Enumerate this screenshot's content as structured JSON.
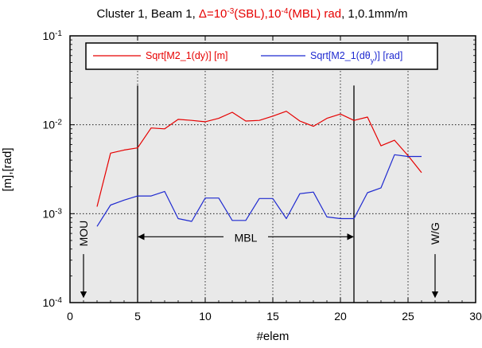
{
  "chart_data": {
    "type": "line",
    "title_parts": [
      {
        "text": "Cluster 1, Beam 1, ",
        "color": "#000000"
      },
      {
        "text": "Δ=10",
        "color": "#e60000"
      },
      {
        "text": "-3",
        "color": "#e60000",
        "sup": true
      },
      {
        "text": "(SBL),10",
        "color": "#e60000"
      },
      {
        "text": "-4",
        "color": "#e60000",
        "sup": true
      },
      {
        "text": "(MBL) rad",
        "color": "#e60000"
      },
      {
        "text": ", 1,0.1mm/m",
        "color": "#000000"
      }
    ],
    "xlabel": "#elem",
    "ylabel": "[m],[rad]",
    "xlim": [
      0,
      30
    ],
    "ylim": [
      0.0001,
      0.1
    ],
    "yscale": "log",
    "x_ticks": [
      "0",
      "5",
      "10",
      "15",
      "20",
      "25",
      "30"
    ],
    "y_ticks": [
      {
        "base": "10",
        "exp": "-4",
        "value": 0.0001
      },
      {
        "base": "10",
        "exp": "-3",
        "value": 0.001
      },
      {
        "base": "10",
        "exp": "-2",
        "value": 0.01
      },
      {
        "base": "10",
        "exp": "-1",
        "value": 0.1
      }
    ],
    "grid": "dotted at decades and at x=5,10,15,20,25",
    "legend_placement": "top, inside plot",
    "series": [
      {
        "name": "Sqrt[M2_1(dy)] [m]",
        "name_parts": [
          {
            "text": "Sqrt[M2_1(dy)] [m]"
          }
        ],
        "color": "#e60000",
        "x": [
          2,
          3,
          4,
          5,
          6,
          7,
          8,
          9,
          10,
          11,
          12,
          13,
          14,
          15,
          16,
          17,
          18,
          19,
          20,
          21,
          22,
          23,
          24,
          25,
          26
        ],
        "y": [
          0.0012,
          0.0048,
          0.0052,
          0.0055,
          0.0092,
          0.009,
          0.0115,
          0.0112,
          0.0108,
          0.0118,
          0.0138,
          0.011,
          0.0112,
          0.0125,
          0.0142,
          0.011,
          0.0096,
          0.0118,
          0.0132,
          0.0112,
          0.0122,
          0.0058,
          0.0067,
          0.0045,
          0.0029
        ]
      },
      {
        "name": "Sqrt[M2_1(dθy)] [rad]",
        "name_parts": [
          {
            "text": "Sqrt[M2_1(dθ"
          },
          {
            "text": "y",
            "sub": true
          },
          {
            "text": ")] [rad]"
          }
        ],
        "color": "#1f2ad0",
        "x": [
          2,
          3,
          4,
          5,
          6,
          7,
          8,
          9,
          10,
          11,
          12,
          13,
          14,
          15,
          16,
          17,
          18,
          19,
          20,
          21,
          22,
          23,
          24,
          25,
          26
        ],
        "y": [
          0.00072,
          0.00125,
          0.00142,
          0.00158,
          0.00158,
          0.00178,
          0.00088,
          0.00082,
          0.0015,
          0.0015,
          0.00084,
          0.00084,
          0.00148,
          0.00148,
          0.00088,
          0.00168,
          0.00175,
          0.00092,
          0.00088,
          0.00088,
          0.00172,
          0.00195,
          0.0046,
          0.0044,
          0.0044
        ]
      }
    ],
    "annotations": {
      "vertical_lines_x": [
        5,
        21
      ],
      "mou": {
        "label": "MOU",
        "x": 1,
        "y_top": 0.0006,
        "y_bottom": 0.00011
      },
      "wg": {
        "label": "W/G",
        "x": 27,
        "y_top": 0.0006,
        "y_bottom": 0.00011
      },
      "mbl": {
        "label": "MBL",
        "x_start": 5,
        "x_end": 21,
        "y": 0.00055
      }
    }
  }
}
